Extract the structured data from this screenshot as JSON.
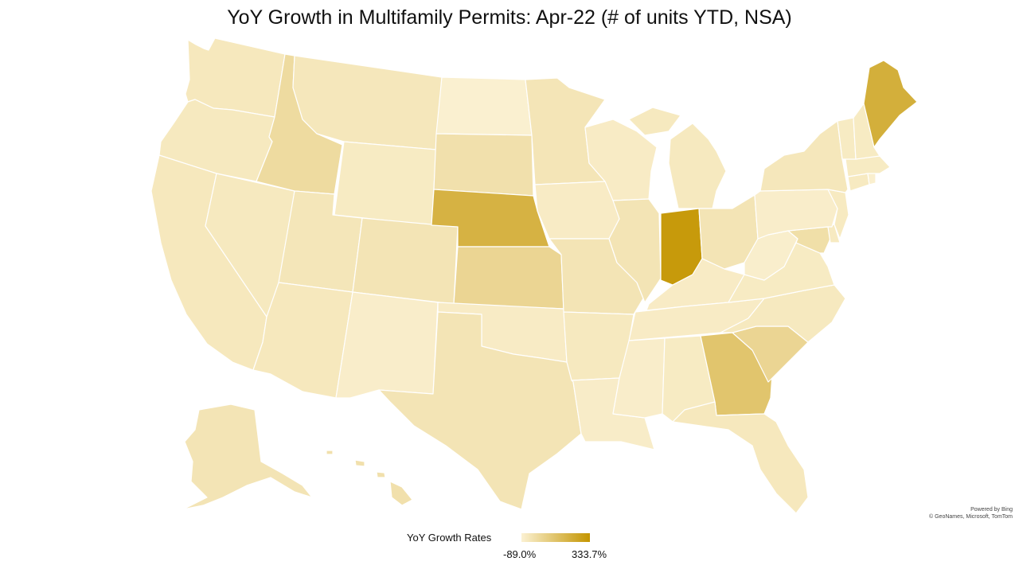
{
  "title": "YoY Growth in Multifamily Permits: Apr-22 (# of units YTD, NSA)",
  "attribution": {
    "line1": "Powered by Bing",
    "line2": "© GeoNames, Microsoft, TomTom"
  },
  "legend": {
    "label": "YoY Growth Rates",
    "min_label": "-89.0%",
    "max_label": "333.7%",
    "min_value": -89.0,
    "max_value": 333.7,
    "color_low": "#FBF1D2",
    "color_high": "#C49500"
  },
  "state_levels": {
    "WA": 0.1,
    "OR": 0.09,
    "CA": 0.1,
    "NV": 0.09,
    "ID": 0.24,
    "MT": 0.11,
    "WY": 0.07,
    "UT": 0.12,
    "AZ": 0.1,
    "CO": 0.14,
    "NM": 0.04,
    "ND": 0.01,
    "SD": 0.18,
    "NE": 0.68,
    "KS": 0.3,
    "OK": 0.06,
    "TX": 0.14,
    "MN": 0.13,
    "IA": 0.06,
    "MO": 0.14,
    "AR": 0.09,
    "LA": 0.05,
    "WI": 0.06,
    "IL": 0.14,
    "MI": 0.09,
    "IN": 0.95,
    "OH": 0.14,
    "KY": 0.06,
    "TN": 0.06,
    "MS": 0.04,
    "AL": 0.07,
    "GA": 0.48,
    "FL": 0.1,
    "SC": 0.3,
    "NC": 0.09,
    "VA": 0.07,
    "WV": 0.03,
    "MD": 0.2,
    "DE": 0.08,
    "PA": 0.04,
    "NJ": 0.08,
    "NY": 0.11,
    "CT": 0.08,
    "RI": 0.02,
    "MA": 0.07,
    "VT": 0.07,
    "NH": 0.07,
    "ME": 0.72,
    "AK": 0.14,
    "HI": 0.18
  }
}
